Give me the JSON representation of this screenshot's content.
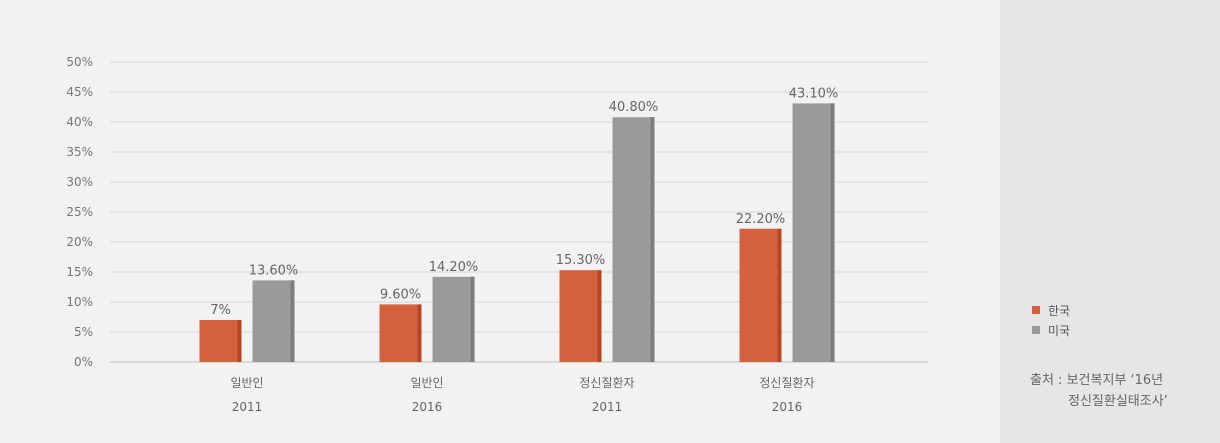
{
  "chart_data": {
    "type": "bar",
    "categories": [
      [
        "일반인",
        "2011"
      ],
      [
        "일반인",
        "2016"
      ],
      [
        "정신질환자",
        "2011"
      ],
      [
        "정신질환자",
        "2016"
      ]
    ],
    "series": [
      {
        "name": "한국",
        "values": [
          7,
          9.6,
          15.3,
          22.2
        ],
        "labels": [
          "7%",
          "9.60%",
          "15.30%",
          "22.20%"
        ],
        "color": "#d5603e",
        "shade": "#b54524"
      },
      {
        "name": "미국",
        "values": [
          13.6,
          14.2,
          40.8,
          43.1
        ],
        "labels": [
          "13.60%",
          "14.20%",
          "40.80%",
          "43.10%"
        ],
        "color": "#9a9a9a",
        "shade": "#7d7d7d"
      }
    ],
    "ylim": [
      0,
      50
    ],
    "yticks": [
      "0%",
      "5%",
      "10%",
      "15%",
      "20%",
      "25%",
      "30%",
      "35%",
      "40%",
      "45%",
      "50%"
    ],
    "grid": true,
    "legend_position": "right"
  },
  "source": {
    "line1": "출처 : 보건복지부 ‘16년",
    "line2": "정신질환실태조사’"
  }
}
